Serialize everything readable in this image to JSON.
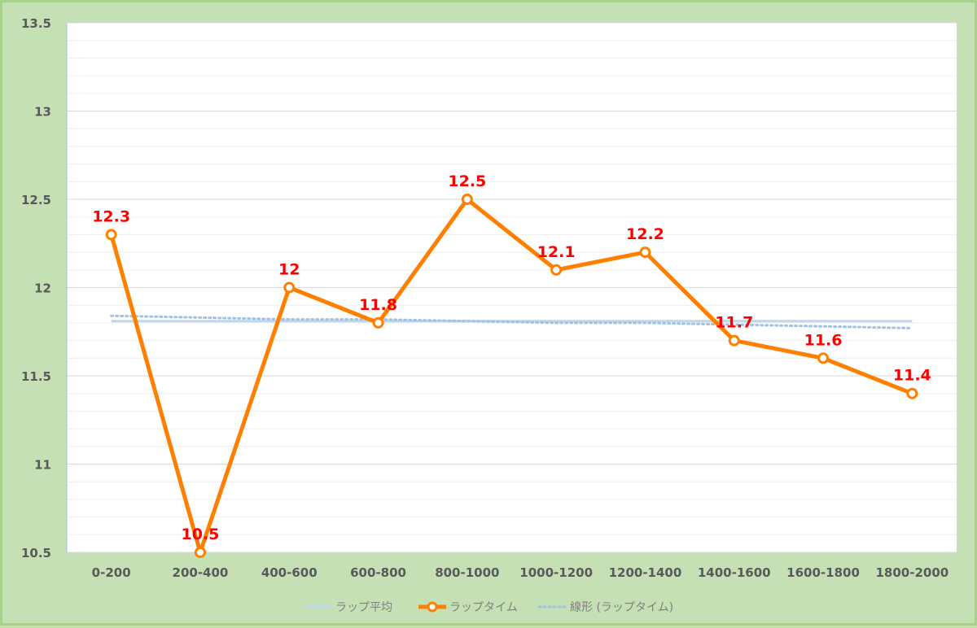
{
  "chart_data": {
    "categories": [
      "0-200",
      "200-400",
      "400-600",
      "600-800",
      "800-1000",
      "1000-1200",
      "1200-1400",
      "1400-1600",
      "1600-1800",
      "1800-2000"
    ],
    "ylim": [
      10.5,
      13.5
    ],
    "ymajor": 0.5,
    "yminor": 0.1,
    "y_tick_labels": [
      "10.5",
      "11",
      "11.5",
      "12",
      "12.5",
      "13",
      "13.5"
    ],
    "series": [
      {
        "name": "ラップタイム",
        "values": [
          12.3,
          10.5,
          12.0,
          11.8,
          12.5,
          12.1,
          12.2,
          11.7,
          11.6,
          11.4
        ],
        "data_labels": [
          "12.3",
          "10.5",
          "12",
          "11.8",
          "12.5",
          "12.1",
          "12.2",
          "11.7",
          "11.6",
          "11.4"
        ],
        "color": "#ff7f00",
        "style": "line-with-markers"
      },
      {
        "name": "ラップ平均",
        "values": [
          11.81,
          11.81,
          11.81,
          11.81,
          11.81,
          11.81,
          11.81,
          11.81,
          11.81,
          11.81
        ],
        "color": "#bdd7ee",
        "style": "solid"
      },
      {
        "name": "線形 (ラップタイム)",
        "values": [
          11.84,
          11.83,
          11.82,
          11.82,
          11.81,
          11.8,
          11.8,
          11.79,
          11.78,
          11.77
        ],
        "color": "#9dc3e6",
        "style": "dotted"
      }
    ],
    "legend_position": "bottom",
    "grid": true
  },
  "colors": {
    "background": "#c5e0b4",
    "frame": "#a9d18e",
    "plot_area": "#ffffff",
    "label": "#ff0000"
  }
}
